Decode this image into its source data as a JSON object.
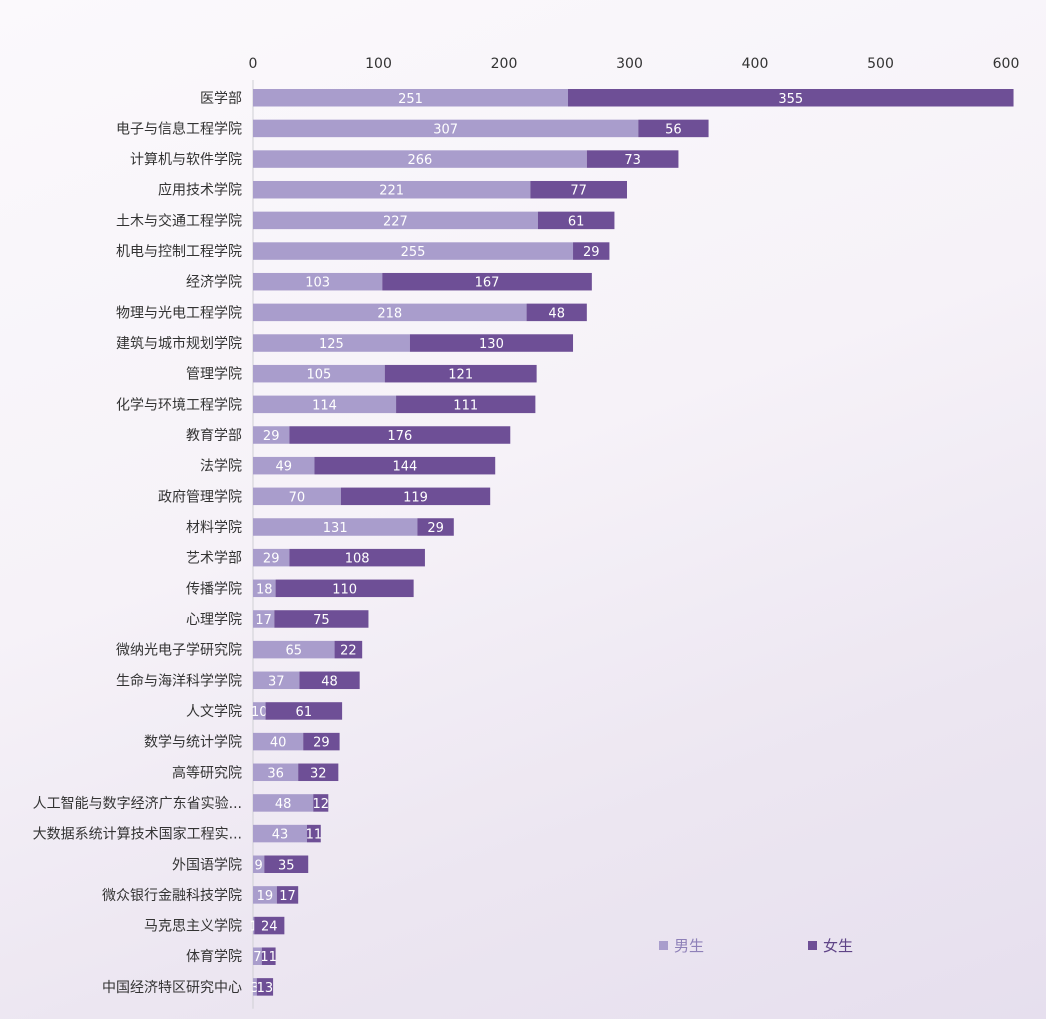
{
  "chart_data": {
    "type": "bar",
    "orientation": "horizontal",
    "stacked": true,
    "categories": [
      "医学部",
      "电子与信息工程学院",
      "计算机与软件学院",
      "应用技术学院",
      "土木与交通工程学院",
      "机电与控制工程学院",
      "经济学院",
      "物理与光电工程学院",
      "建筑与城市规划学院",
      "管理学院",
      "化学与环境工程学院",
      "教育学部",
      "法学院",
      "政府管理学院",
      "材料学院",
      "艺术学部",
      "传播学院",
      "心理学院",
      "微纳光电子学研究院",
      "生命与海洋科学学院",
      "人文学院",
      "数学与统计学院",
      "高等研究院",
      "人工智能与数字经济广东省实验...",
      "大数据系统计算技术国家工程实...",
      "外国语学院",
      "微众银行金融科技学院",
      "马克思主义学院",
      "体育学院",
      "中国经济特区研究中心"
    ],
    "series": [
      {
        "name": "男生",
        "color": "#a99dcc",
        "values": [
          251,
          307,
          266,
          221,
          227,
          255,
          103,
          218,
          125,
          105,
          114,
          29,
          49,
          70,
          131,
          29,
          18,
          17,
          65,
          37,
          10,
          40,
          36,
          48,
          43,
          9,
          19,
          1,
          7,
          3
        ],
        "labels": [
          "251",
          "307",
          "266",
          "221",
          "227",
          "255",
          "103",
          "218",
          "125",
          "105",
          "114",
          "29",
          "49",
          "70",
          "131",
          "29",
          "18",
          "17",
          "65",
          "37",
          "10",
          "40",
          "36",
          "48",
          "43",
          "9",
          "19",
          "1",
          "7",
          "3"
        ]
      },
      {
        "name": "女生",
        "color": "#6e4f96",
        "values": [
          355,
          56,
          73,
          77,
          61,
          29,
          167,
          48,
          130,
          121,
          111,
          176,
          144,
          119,
          29,
          108,
          110,
          75,
          22,
          48,
          61,
          29,
          32,
          12,
          11,
          35,
          17,
          24,
          11,
          13
        ],
        "labels": [
          "355",
          "56",
          "73",
          "77",
          "61",
          "29",
          "167",
          "48",
          "130",
          "121",
          "111",
          "176",
          "144",
          "119",
          "29",
          "108",
          "110",
          "75",
          "22",
          "48",
          "61",
          "29",
          "32",
          "12",
          "11",
          "35",
          "17",
          "24",
          "11",
          "13"
        ]
      }
    ],
    "xlim": [
      0,
      600
    ],
    "x_ticks": [
      "0",
      "100",
      "200",
      "300",
      "400",
      "500",
      "600"
    ],
    "x_axis_position": "top",
    "grid": false,
    "legend_position": "bottom-right"
  }
}
